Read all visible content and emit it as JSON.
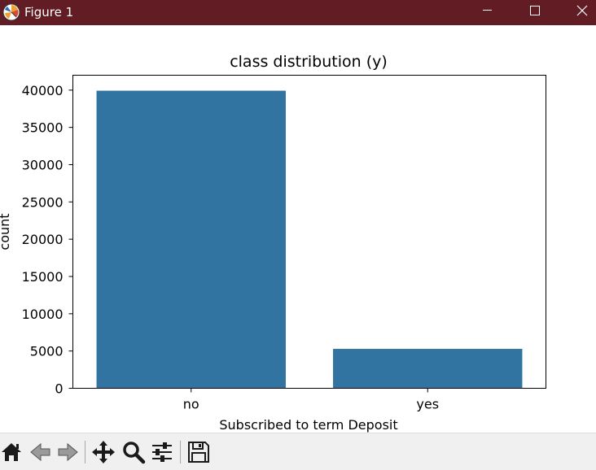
{
  "window": {
    "title": "Figure 1",
    "title_bar_color": "#621c24",
    "icons": {
      "app": "matplotlib-icon",
      "minimize": "minimize-icon",
      "maximize": "maximize-icon",
      "close": "close-icon"
    }
  },
  "toolbar": {
    "items": [
      {
        "name": "home-icon"
      },
      {
        "name": "back-arrow-icon"
      },
      {
        "name": "forward-arrow-icon"
      },
      {
        "name": "pan-icon"
      },
      {
        "name": "zoom-icon"
      },
      {
        "name": "configure-subplots-icon"
      },
      {
        "name": "save-icon"
      }
    ]
  },
  "chart_data": {
    "type": "bar",
    "title": "class distribution (y)",
    "xlabel": "Subscribed to term Deposit",
    "ylabel": "count",
    "categories": [
      "no",
      "yes"
    ],
    "values": [
      39922,
      5289
    ],
    "ylim": [
      0,
      42000
    ],
    "yticks": [
      0,
      5000,
      10000,
      15000,
      20000,
      25000,
      30000,
      35000,
      40000
    ],
    "bar_color": "#3274a1",
    "grid": false,
    "legend": "none"
  }
}
